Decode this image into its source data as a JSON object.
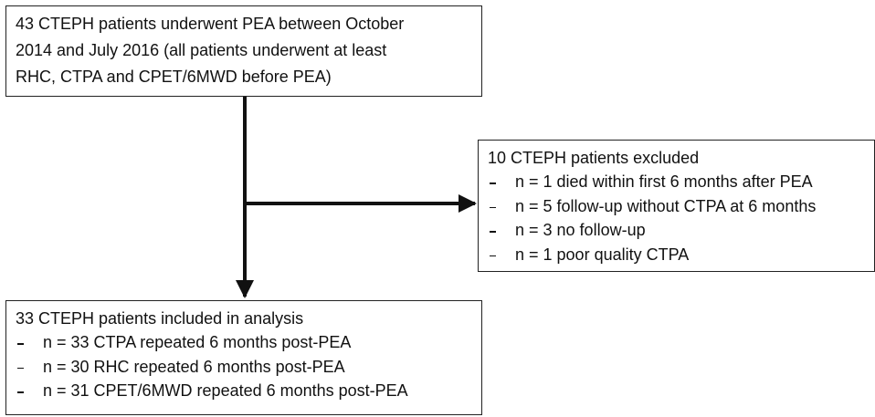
{
  "nodes": [
    {
      "lines": [
        "43 CTEPH patients underwent PEA between October",
        "2014 and July 2016 (all patients underwent at least",
        "RHC, CTPA and CPET/6MWD before PEA)"
      ]
    },
    {
      "title": "10 CTEPH patients excluded",
      "items": [
        "n = 1 died within first 6 months after PEA",
        "n = 5 follow-up without CTPA at 6 months",
        "n = 3 no follow-up",
        "n = 1 poor quality CTPA"
      ]
    },
    {
      "title": "33 CTEPH patients included in analysis",
      "items": [
        "n = 33 CTPA repeated 6 months post-PEA",
        "n = 30 RHC repeated 6 months post-PEA",
        "n = 31 CPET/6MWD repeated 6 months post-PEA"
      ]
    }
  ]
}
